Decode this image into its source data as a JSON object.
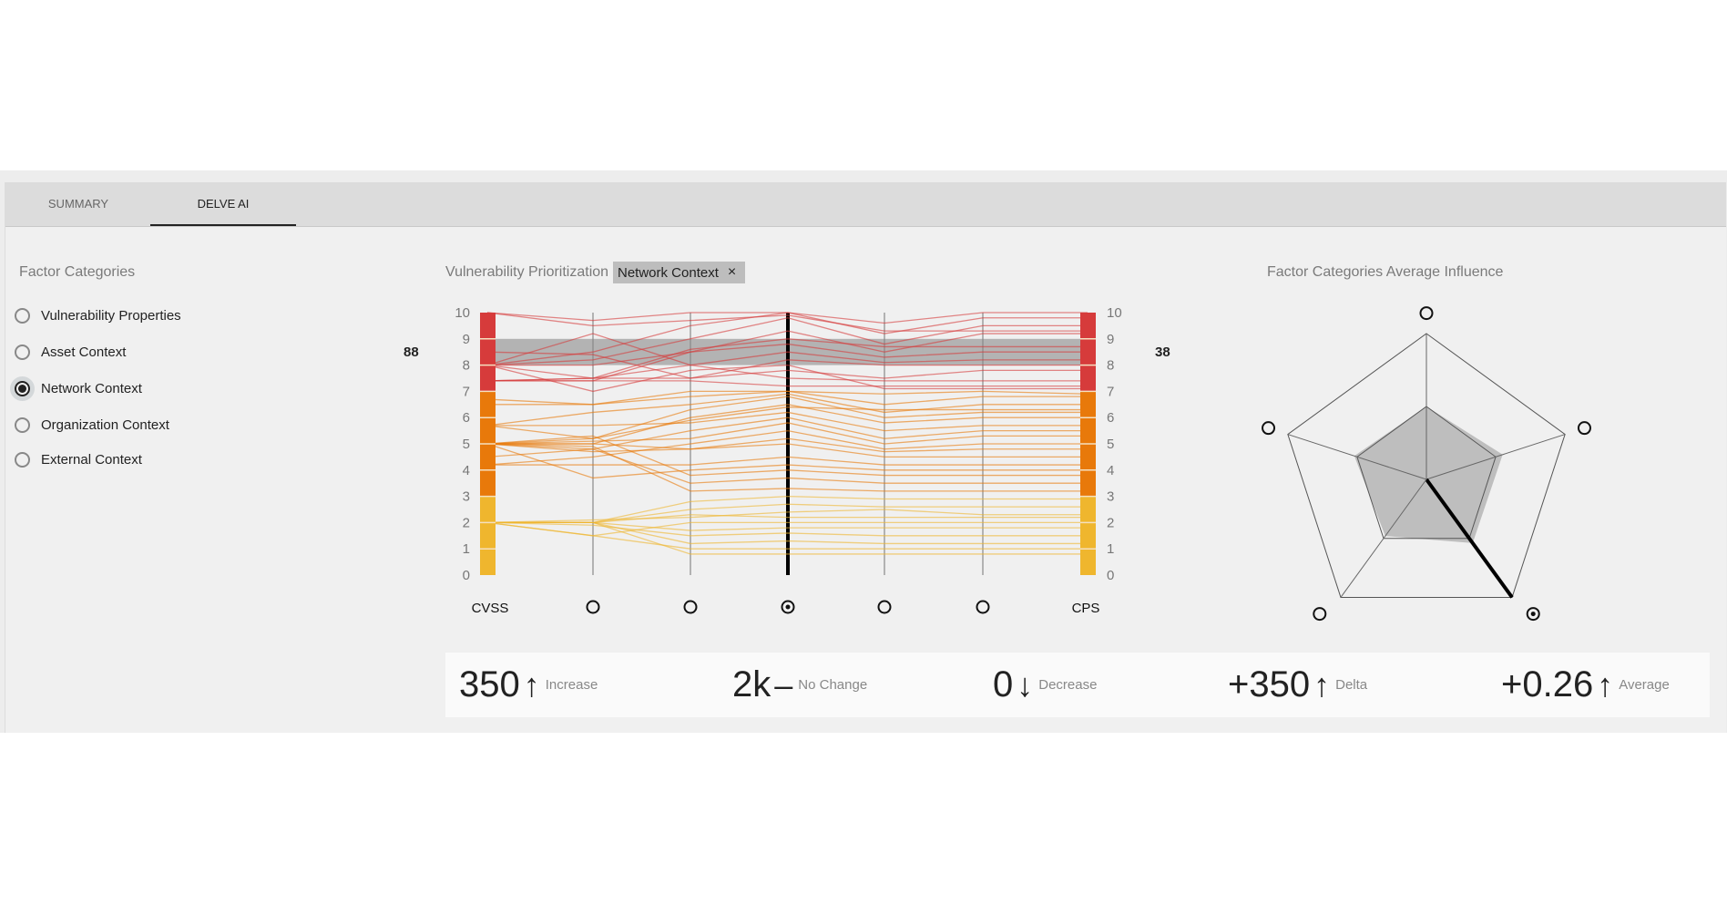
{
  "tabs": [
    {
      "label": "SUMMARY",
      "active": false
    },
    {
      "label": "DELVE AI",
      "active": true
    }
  ],
  "factor_categories": {
    "title": "Factor Categories",
    "items": [
      {
        "label": "Vulnerability Properties",
        "selected": false
      },
      {
        "label": "Asset Context",
        "selected": false
      },
      {
        "label": "Network Context",
        "selected": true
      },
      {
        "label": "Organization Context",
        "selected": false
      },
      {
        "label": "External Context",
        "selected": false
      }
    ],
    "count_left": "88"
  },
  "prioritization": {
    "title": "Vulnerability Prioritization",
    "filter_chip": "Network Context",
    "chip_close": "×",
    "count_right": "38"
  },
  "radar": {
    "title": "Factor Categories Average Influence"
  },
  "colors": {
    "high": "#d63b3b",
    "medium": "#e8790a",
    "low": "#efb62e",
    "highlight": "#a8a8a8"
  },
  "chart_data": [
    {
      "type": "parallel-coordinates",
      "axes": [
        "CVSS",
        "",
        "",
        "",
        "",
        "",
        "CPS"
      ],
      "selected_axis": 3,
      "ylim": [
        0,
        10
      ],
      "yticks": [
        "0",
        "1",
        "2",
        "3",
        "4",
        "5",
        "6",
        "7",
        "8",
        "9",
        "10"
      ],
      "highlight_range": [
        8,
        9
      ],
      "severity_bands": [
        {
          "from": 7,
          "to": 10,
          "level": "high"
        },
        {
          "from": 3,
          "to": 7,
          "level": "medium"
        },
        {
          "from": 0,
          "to": 3,
          "level": "low"
        }
      ],
      "lines": [
        [
          10,
          9.7,
          10,
          10,
          9.6,
          10,
          10
        ],
        [
          8,
          8.5,
          9.5,
          10,
          9.2,
          9.8,
          9.8
        ],
        [
          8,
          8.2,
          9,
          9.8,
          8.8,
          9.5,
          9.5
        ],
        [
          8,
          8,
          8.5,
          9.3,
          8.5,
          9.2,
          9.2
        ],
        [
          7.4,
          7.5,
          8.6,
          9,
          8.7,
          8.7,
          8.7
        ],
        [
          7.4,
          7.4,
          8.5,
          8.8,
          8.3,
          8.5,
          8.5
        ],
        [
          8,
          7.5,
          8,
          8.5,
          8.1,
          8.2,
          8.2
        ],
        [
          8.5,
          8.4,
          7.5,
          8.2,
          8,
          8,
          8
        ],
        [
          7.4,
          7.5,
          7.5,
          7.8,
          7.5,
          7.8,
          7.8
        ],
        [
          8,
          9.2,
          8,
          7.5,
          7.4,
          7.4,
          7.4
        ],
        [
          7.4,
          7.4,
          7.4,
          7.2,
          7.2,
          7.2,
          7.2
        ],
        [
          8,
          7,
          7.8,
          8,
          7.1,
          7.1,
          7.1
        ],
        [
          10,
          9.5,
          9.7,
          9.9,
          9.3,
          9.3,
          9.3
        ],
        [
          6.7,
          6.5,
          7,
          7,
          6.5,
          6.8,
          6.8
        ],
        [
          5.7,
          6.2,
          6.5,
          6.9,
          6.2,
          6.5,
          6.5
        ],
        [
          5,
          5.2,
          6.3,
          6.8,
          6,
          6.2,
          6.2
        ],
        [
          5,
          5,
          6,
          6.5,
          5.8,
          6,
          6
        ],
        [
          5.7,
          5.7,
          5.8,
          6.2,
          5.5,
          5.7,
          5.7
        ],
        [
          5,
          4.8,
          5.5,
          6,
          5.2,
          5.5,
          5.5
        ],
        [
          5,
          5.1,
          5.2,
          5.8,
          5,
          5.3,
          5.3
        ],
        [
          4.2,
          4.5,
          5,
          5.5,
          4.8,
          5,
          5
        ],
        [
          5,
          4.7,
          4.8,
          5.2,
          4.7,
          4.8,
          4.8
        ],
        [
          5,
          5,
          4.8,
          5,
          4.5,
          4.5,
          4.5
        ],
        [
          4.2,
          4.2,
          4.2,
          4.5,
          4.2,
          4.2,
          4.2
        ],
        [
          5,
          3.7,
          4,
          4.2,
          4,
          4,
          4
        ],
        [
          5,
          5.3,
          3.8,
          4,
          3.8,
          3.8,
          3.8
        ],
        [
          4.5,
          4.8,
          3.5,
          3.7,
          3.5,
          3.5,
          3.5
        ],
        [
          5,
          4.9,
          3.2,
          3.3,
          3.2,
          3.2,
          3.2
        ],
        [
          6.5,
          6.5,
          6.8,
          7,
          6.9,
          7,
          6.9
        ],
        [
          5.7,
          5.2,
          5.9,
          6.4,
          6.3,
          6.3,
          6.3
        ],
        [
          2,
          2,
          2.8,
          3,
          2.9,
          2.9,
          2.9
        ],
        [
          2,
          2,
          2.5,
          2.7,
          2.6,
          2.6,
          2.6
        ],
        [
          2,
          2.1,
          2.2,
          2.4,
          2.5,
          2.3,
          2.3
        ],
        [
          2,
          2,
          2.3,
          2.2,
          2.2,
          2.2,
          2.2
        ],
        [
          2,
          1.5,
          2,
          2,
          2,
          2,
          2
        ],
        [
          2,
          2,
          1.7,
          1.8,
          1.8,
          1.8,
          1.8
        ],
        [
          2,
          1.9,
          1.5,
          1.6,
          1.5,
          1.5,
          1.5
        ],
        [
          2,
          2,
          1.2,
          1.3,
          1.2,
          1.2,
          1.2
        ],
        [
          2,
          1.5,
          1,
          1,
          1,
          1,
          1
        ],
        [
          2,
          2,
          0.8,
          0.8,
          0.8,
          0.8,
          0.8
        ]
      ]
    },
    {
      "type": "radar",
      "axes_count": 5,
      "selected_axis": 2,
      "range": [
        0,
        1
      ],
      "values": [
        0.5,
        0.55,
        0.54,
        0.48,
        0.52
      ],
      "inner_ring": 0.5
    }
  ],
  "stats": [
    {
      "value": "350",
      "icon": "arrow-up",
      "label": "Increase"
    },
    {
      "value": "2k",
      "icon": "dash",
      "label": "No Change"
    },
    {
      "value": "0",
      "icon": "arrow-down",
      "label": "Decrease"
    },
    {
      "value": "+350",
      "icon": "arrow-up",
      "label": "Delta"
    },
    {
      "value": "+0.26",
      "icon": "arrow-up",
      "label": "Average"
    }
  ]
}
